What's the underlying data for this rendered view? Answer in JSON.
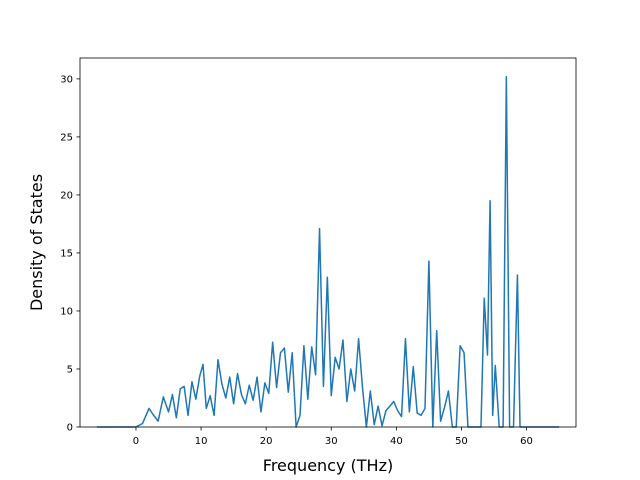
{
  "chart_data": {
    "type": "line",
    "title": "",
    "xlabel": "Frequency (THz)",
    "ylabel": "Density of States",
    "xlim": [
      -8.6,
      67.6
    ],
    "ylim": [
      0,
      31.8
    ],
    "xticks": [
      0,
      10,
      20,
      30,
      40,
      50,
      60
    ],
    "yticks": [
      0,
      5,
      10,
      15,
      20,
      25,
      30
    ],
    "grid": false,
    "legend": "none",
    "colors": {
      "line": "#1f77b4",
      "axes": "#000000",
      "background": "#ffffff"
    },
    "series": [
      {
        "x": [
          -6.0,
          0.0,
          1.0,
          2.0,
          2.6,
          3.4,
          4.2,
          5.0,
          5.6,
          6.2,
          6.8,
          7.4,
          8.0,
          8.6,
          9.2,
          9.8,
          10.3,
          10.8,
          11.4,
          12.0,
          12.6,
          13.2,
          13.8,
          14.4,
          15.0,
          15.6,
          16.2,
          16.8,
          17.4,
          18.0,
          18.6,
          19.2,
          19.8,
          20.4,
          21.0,
          21.6,
          22.2,
          22.8,
          23.4,
          24.0,
          24.6,
          25.2,
          25.8,
          26.4,
          27.0,
          27.6,
          28.2,
          28.8,
          29.4,
          30.0,
          30.6,
          31.2,
          31.8,
          32.4,
          33.0,
          33.6,
          34.2,
          34.8,
          35.4,
          36.0,
          36.6,
          37.2,
          37.8,
          38.4,
          39.0,
          39.6,
          40.2,
          40.8,
          41.4,
          42.0,
          42.6,
          43.2,
          43.8,
          44.4,
          45.0,
          45.6,
          46.2,
          46.8,
          47.4,
          48.0,
          48.6,
          49.2,
          49.8,
          50.4,
          51.0,
          52.0,
          53.0,
          53.5,
          54.0,
          54.4,
          54.8,
          55.2,
          55.8,
          56.4,
          56.9,
          57.4,
          58.0,
          58.6,
          59.0,
          59.6,
          65.0
        ],
        "y": [
          0.0,
          0.0,
          0.3,
          1.6,
          1.1,
          0.5,
          2.6,
          1.3,
          2.8,
          0.8,
          3.3,
          3.5,
          1.0,
          3.9,
          2.4,
          4.4,
          5.4,
          1.6,
          2.7,
          1.0,
          5.8,
          3.7,
          2.5,
          4.3,
          2.0,
          4.6,
          2.8,
          2.0,
          3.6,
          2.3,
          4.3,
          1.3,
          3.8,
          2.9,
          7.3,
          3.4,
          6.4,
          6.8,
          3.0,
          6.4,
          0.0,
          1.0,
          7.0,
          2.4,
          6.9,
          4.5,
          17.1,
          3.5,
          12.9,
          2.7,
          6.0,
          5.0,
          7.5,
          2.2,
          5.0,
          3.1,
          7.6,
          3.4,
          0.0,
          3.1,
          0.2,
          1.8,
          0.1,
          1.4,
          1.8,
          2.2,
          1.4,
          0.9,
          7.6,
          1.3,
          5.2,
          1.2,
          1.0,
          1.6,
          14.3,
          0.0,
          8.3,
          0.5,
          1.7,
          3.1,
          0.0,
          0.0,
          7.0,
          6.4,
          0.0,
          0.0,
          0.0,
          11.1,
          6.2,
          19.5,
          1.0,
          5.3,
          0.0,
          0.0,
          30.2,
          0.0,
          0.0,
          13.1,
          0.0,
          0.0,
          0.0
        ]
      }
    ]
  }
}
